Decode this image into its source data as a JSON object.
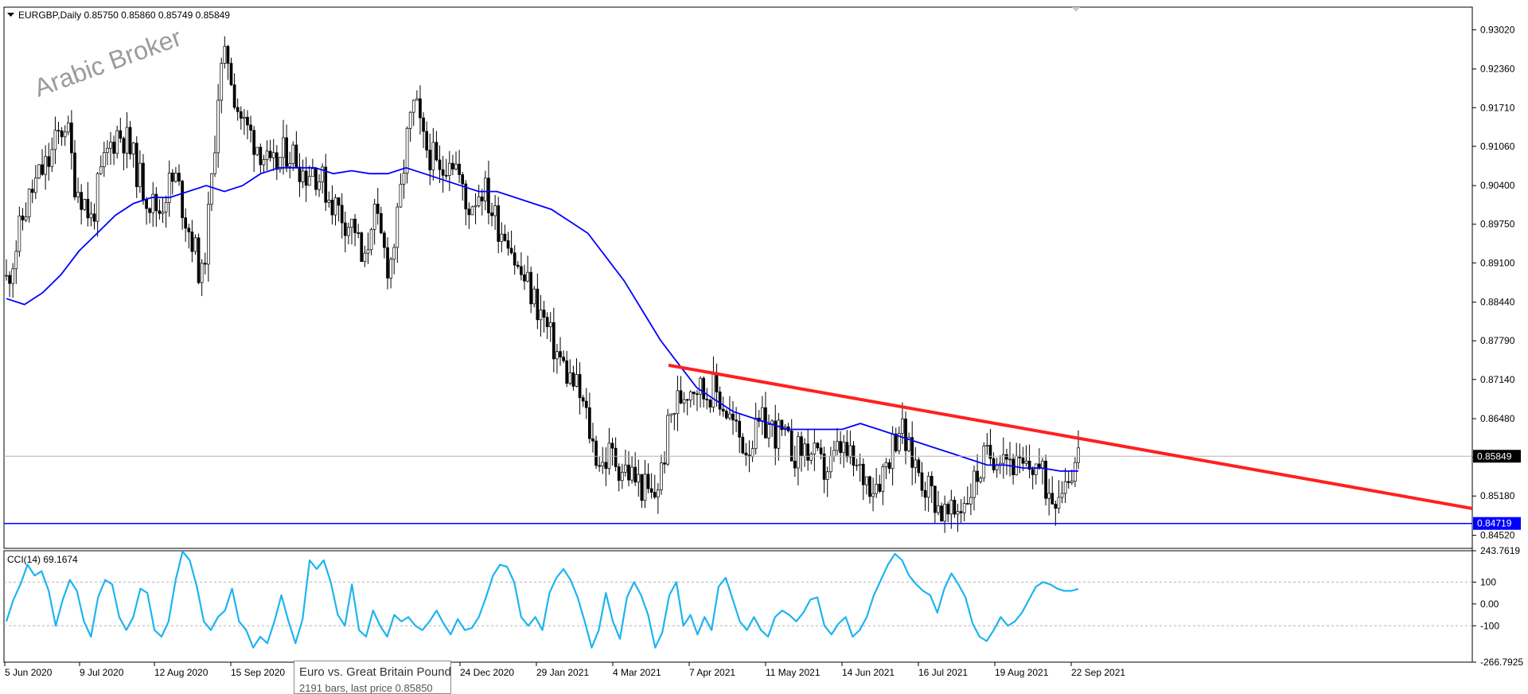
{
  "header": {
    "symbol_info": "EURGBP,Daily  0.85750 0.85860 0.85749 0.85849"
  },
  "watermark": "Arabic Broker",
  "indicator": {
    "label": "CCI(14) 69.1674"
  },
  "tooltip": {
    "title": "Euro vs. Great Britain Pound",
    "subtitle": "2191 bars, last price 0.85850"
  },
  "colors": {
    "candles": "#000000",
    "moving_average": "#0000ff",
    "trendline": "#ff2020",
    "support_line": "#0000ff",
    "cci": "#1eb4f0",
    "grid": "#c0c0c0"
  },
  "chart_data": [
    {
      "type": "candlestick",
      "title": "EURGBP,Daily",
      "ylim": [
        0.843,
        0.934
      ],
      "y_ticks": [
        "0.93020",
        "0.92360",
        "0.91710",
        "0.91060",
        "0.90400",
        "0.89750",
        "0.89100",
        "0.88440",
        "0.87790",
        "0.87140",
        "0.86480",
        "0.85830",
        "0.85180",
        "0.84520"
      ],
      "x_ticks": [
        "5 Jun 2020",
        "9 Jul 2020",
        "12 Aug 2020",
        "15 Sep 2020",
        "20 Oct 2020",
        "24 Dec 2020",
        "29 Jan 2021",
        "4 Mar 2021",
        "7 Apr 2021",
        "11 May 2021",
        "14 Jun 2021",
        "16 Jul 2021",
        "19 Aug 2021",
        "22 Sep 2021"
      ],
      "last_price": {
        "value": 0.85849,
        "label": "0.85849"
      },
      "support_line": {
        "value": 0.84719,
        "label": "0.84719"
      },
      "ohlc_last": {
        "open": 0.8575,
        "high": 0.8586,
        "low": 0.85749,
        "close": 0.85849
      },
      "close_series": [
        0.888,
        0.893,
        0.899,
        0.903,
        0.906,
        0.908,
        0.912,
        0.915,
        0.905,
        0.902,
        0.898,
        0.905,
        0.91,
        0.913,
        0.912,
        0.908,
        0.904,
        0.901,
        0.9,
        0.904,
        0.905,
        0.899,
        0.894,
        0.888,
        0.902,
        0.922,
        0.926,
        0.918,
        0.914,
        0.912,
        0.91,
        0.906,
        0.908,
        0.91,
        0.909,
        0.906,
        0.907,
        0.905,
        0.902,
        0.9,
        0.898,
        0.897,
        0.889,
        0.9,
        0.895,
        0.89,
        0.898,
        0.911,
        0.918,
        0.911,
        0.909,
        0.905,
        0.91,
        0.907,
        0.9,
        0.902,
        0.904,
        0.9,
        0.897,
        0.896,
        0.89,
        0.888,
        0.885,
        0.882,
        0.878,
        0.875,
        0.872,
        0.87,
        0.866,
        0.86,
        0.857,
        0.859,
        0.857,
        0.856,
        0.8545,
        0.853,
        0.851,
        0.856,
        0.865,
        0.868,
        0.87,
        0.871,
        0.869,
        0.87,
        0.868,
        0.865,
        0.862,
        0.86,
        0.862,
        0.864,
        0.863,
        0.862,
        0.86,
        0.859,
        0.86,
        0.858,
        0.856,
        0.857,
        0.86,
        0.858,
        0.856,
        0.855,
        0.854,
        0.856,
        0.86,
        0.864,
        0.859,
        0.857,
        0.854,
        0.852,
        0.849,
        0.848,
        0.85,
        0.852,
        0.855,
        0.858,
        0.859,
        0.86,
        0.858,
        0.856,
        0.856,
        0.8575,
        0.854,
        0.852,
        0.854,
        0.856,
        0.8585
      ],
      "moving_average": [
        0.885,
        0.884,
        0.886,
        0.889,
        0.893,
        0.896,
        0.899,
        0.901,
        0.902,
        0.902,
        0.903,
        0.904,
        0.903,
        0.904,
        0.906,
        0.907,
        0.907,
        0.907,
        0.906,
        0.9065,
        0.906,
        0.906,
        0.907,
        0.906,
        0.905,
        0.904,
        0.903,
        0.903,
        0.902,
        0.901,
        0.9,
        0.898,
        0.896,
        0.892,
        0.888,
        0.883,
        0.878,
        0.874,
        0.87,
        0.868,
        0.866,
        0.865,
        0.864,
        0.863,
        0.863,
        0.863,
        0.863,
        0.864,
        0.863,
        0.862,
        0.861,
        0.86,
        0.859,
        0.858,
        0.857,
        0.857,
        0.8565,
        0.8565,
        0.856,
        0.856
      ],
      "trendline": [
        {
          "x": "7 Apr 2021",
          "y": 0.8738
        },
        {
          "x": "after 22 Sep 2021",
          "y": 0.8497
        }
      ],
      "grid": false
    },
    {
      "type": "line",
      "title": "CCI(14) 69.1674",
      "ylim": [
        -266.7925,
        243.7619
      ],
      "y_ticks": [
        "243.7619",
        "100",
        "0.00",
        "-100",
        "-266.7925"
      ],
      "reference_levels": [
        100,
        -100
      ],
      "values": [
        -80,
        20,
        90,
        180,
        130,
        150,
        60,
        -100,
        20,
        110,
        60,
        -80,
        -150,
        30,
        110,
        90,
        -60,
        -120,
        -60,
        70,
        50,
        -120,
        -150,
        -80,
        110,
        240,
        200,
        80,
        -80,
        -120,
        -60,
        -30,
        70,
        -80,
        -120,
        -200,
        -150,
        -180,
        -80,
        40,
        -80,
        -180,
        -70,
        200,
        160,
        200,
        100,
        -50,
        -100,
        90,
        -120,
        -150,
        -30,
        -100,
        -150,
        -50,
        -80,
        -60,
        -100,
        -120,
        -80,
        -30,
        -90,
        -140,
        -70,
        -120,
        -110,
        -60,
        30,
        130,
        180,
        170,
        100,
        -60,
        -100,
        -60,
        -120,
        50,
        120,
        160,
        110,
        30,
        -80,
        -200,
        -120,
        50,
        -80,
        -160,
        30,
        100,
        40,
        -50,
        -200,
        -130,
        40,
        100,
        -100,
        -50,
        -140,
        -60,
        -120,
        80,
        120,
        20,
        -80,
        -120,
        -60,
        -120,
        -150,
        -60,
        -30,
        -50,
        -80,
        -40,
        20,
        30,
        -100,
        -140,
        -90,
        -60,
        -150,
        -120,
        -60,
        40,
        110,
        180,
        230,
        200,
        130,
        90,
        60,
        40,
        -40,
        70,
        140,
        90,
        30,
        -90,
        -150,
        -170,
        -120,
        -60,
        -100,
        -80,
        -40,
        20,
        80,
        100,
        90,
        70,
        60,
        60,
        69
      ]
    }
  ]
}
